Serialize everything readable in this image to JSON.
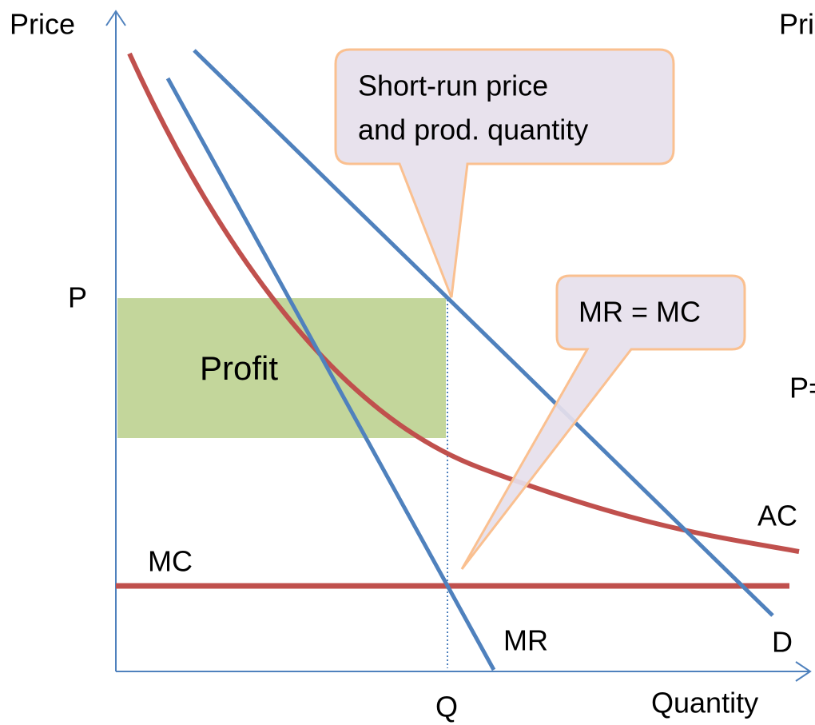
{
  "axes": {
    "y_label": "Price",
    "x_label": "Quantity",
    "price_mark": "P",
    "quantity_mark": "Q"
  },
  "region": {
    "label": "Profit"
  },
  "curves": {
    "ac": "AC",
    "mc": "MC",
    "mr": "MR",
    "demand": "D"
  },
  "callouts": [
    {
      "lines": [
        "Short-run price",
        "and prod. quantity"
      ]
    },
    {
      "lines": [
        "MR = MC"
      ]
    }
  ],
  "cropped": {
    "right_top": "Pri",
    "right_middle": "P="
  }
}
